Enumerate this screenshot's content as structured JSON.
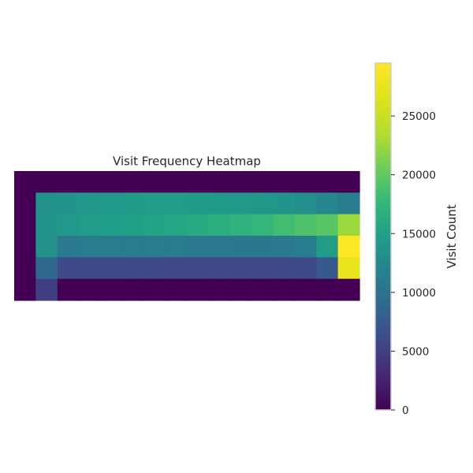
{
  "chart_data": {
    "type": "heatmap",
    "title": "Visit Frequency Heatmap",
    "xlabel": "",
    "ylabel": "",
    "colormap": "viridis",
    "grid": false,
    "colorbar": {
      "label": "Visit Count",
      "range": [
        0,
        29500
      ],
      "ticks": [
        0,
        5000,
        10000,
        15000,
        20000,
        25000
      ],
      "tick_labels": [
        "0",
        "5000",
        "10000",
        "15000",
        "20000",
        "25000"
      ]
    },
    "rows": 6,
    "cols": 16,
    "values": [
      [
        0,
        0,
        0,
        0,
        0,
        0,
        0,
        0,
        0,
        0,
        0,
        0,
        0,
        0,
        0,
        0
      ],
      [
        0,
        13500,
        13800,
        14000,
        14200,
        14400,
        14500,
        14500,
        14400,
        14300,
        14200,
        14000,
        13700,
        13200,
        12300,
        11300
      ],
      [
        0,
        13800,
        14200,
        14500,
        14800,
        15000,
        15300,
        15600,
        16000,
        16500,
        17000,
        17500,
        18300,
        19000,
        19500,
        22500
      ],
      [
        0,
        13500,
        10800,
        11000,
        11000,
        11000,
        11000,
        11000,
        10900,
        10800,
        10700,
        10700,
        10800,
        11300,
        14500,
        29500
      ],
      [
        0,
        9000,
        6000,
        6000,
        5900,
        5800,
        5800,
        5700,
        5700,
        5700,
        5700,
        5700,
        5800,
        5800,
        7500,
        27500
      ],
      [
        0,
        5000,
        0,
        0,
        0,
        0,
        0,
        0,
        0,
        0,
        0,
        0,
        0,
        0,
        0,
        0
      ]
    ]
  }
}
